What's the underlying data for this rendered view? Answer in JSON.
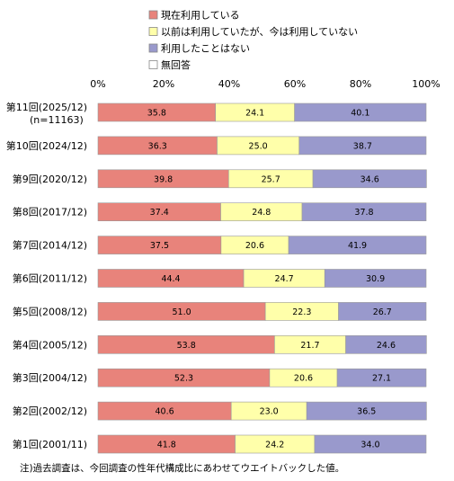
{
  "chart_data": {
    "type": "bar",
    "orientation": "horizontal",
    "stacked": true,
    "percent": true,
    "xlim": [
      0,
      100
    ],
    "x_ticks": [
      "0%",
      "20%",
      "40%",
      "60%",
      "80%",
      "100%"
    ],
    "legend_position": "top",
    "categories": [
      "第11回(2025/12)",
      "第10回(2024/12)",
      "第9回(2020/12)",
      "第8回(2017/12)",
      "第7回(2014/12)",
      "第6回(2011/12)",
      "第5回(2008/12)",
      "第4回(2005/12)",
      "第3回(2004/12)",
      "第2回(2002/12)",
      "第1回(2001/11)"
    ],
    "category_sublabels": [
      "(n=11163)",
      "",
      "",
      "",
      "",
      "",
      "",
      "",
      "",
      "",
      ""
    ],
    "series": [
      {
        "name": "現在利用している",
        "color": "#E8837B",
        "values": [
          "35.8",
          "36.3",
          "39.8",
          "37.4",
          "37.5",
          "44.4",
          "51.0",
          "53.8",
          "52.3",
          "40.6",
          "41.8"
        ]
      },
      {
        "name": "以前は利用していたが、今は利用していない",
        "color": "#FFFFAA",
        "values": [
          "24.1",
          "25.0",
          "25.7",
          "24.8",
          "20.6",
          "24.7",
          "22.3",
          "21.7",
          "20.6",
          "23.0",
          "24.2"
        ]
      },
      {
        "name": "利用したことはない",
        "color": "#9999CC",
        "values": [
          "40.1",
          "38.7",
          "34.6",
          "37.8",
          "41.9",
          "30.9",
          "26.7",
          "24.6",
          "27.1",
          "36.5",
          "34.0"
        ]
      },
      {
        "name": "無回答",
        "color": "#FFFFFF",
        "values": [
          "0.0",
          "0.0",
          "0.0",
          "0.0",
          "0.0",
          "0.0",
          "0.0",
          "0.0",
          "0.0",
          "0.0",
          "0.0"
        ]
      }
    ],
    "note": "注)過去調査は、今回調査の性年代構成比にあわせてウエイトバックした値。"
  }
}
